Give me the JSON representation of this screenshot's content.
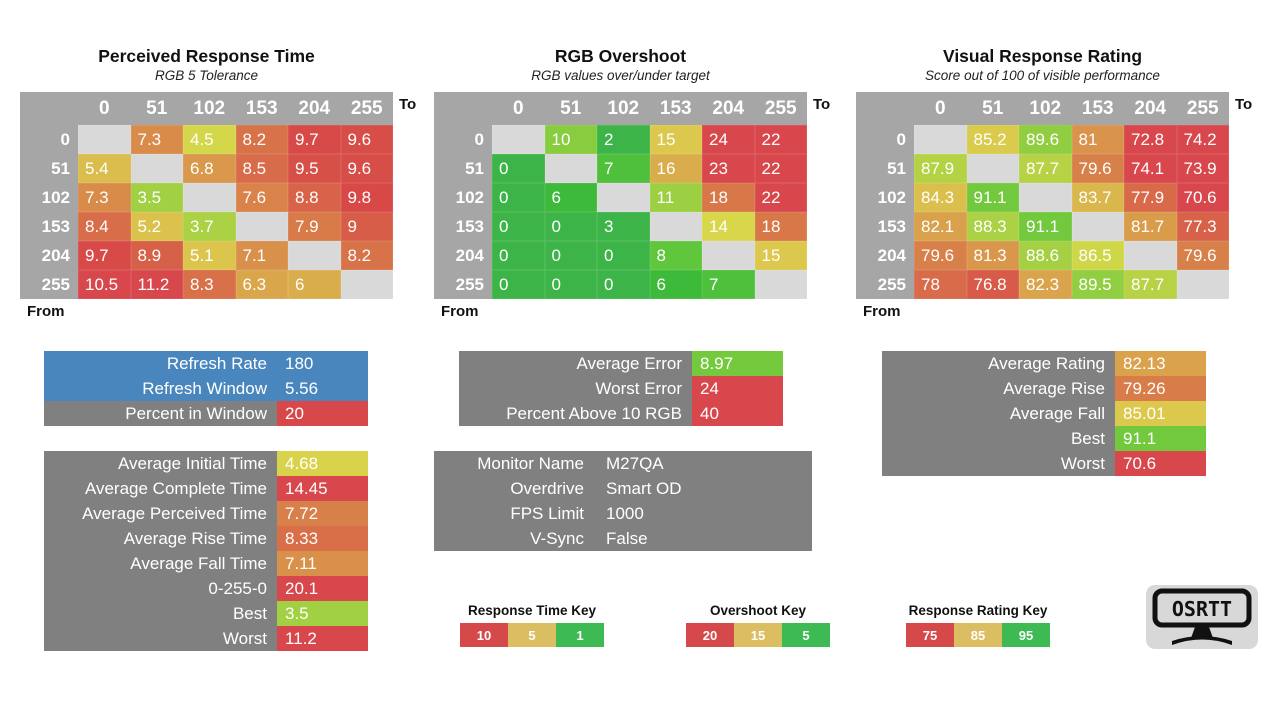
{
  "page": {
    "background": "#ffffff"
  },
  "colors": {
    "blue": "#4a86be",
    "gray": "#808080",
    "header_gray": "#a6a6a6",
    "diag_gray": "#d9d9d9",
    "red": "#d8484b",
    "key_red": "#d6494b",
    "key_tan": "#dbbe62",
    "key_green": "#3eba55",
    "logo_bg": "#d8d8d8"
  },
  "scales": {
    "time": {
      "stops": [
        [
          1,
          [
            126,
            50,
            47
          ]
        ],
        [
          5,
          [
            52,
            66,
            58
          ]
        ],
        [
          10,
          [
            358,
            64,
            56
          ]
        ]
      ]
    },
    "overshoot": {
      "stops": [
        [
          5,
          [
            126,
            50,
            47
          ]
        ],
        [
          15,
          [
            52,
            66,
            58
          ]
        ],
        [
          20,
          [
            358,
            64,
            56
          ]
        ]
      ]
    },
    "rating": {
      "stops": [
        [
          75,
          [
            358,
            64,
            56
          ]
        ],
        [
          85,
          [
            52,
            66,
            58
          ]
        ],
        [
          95,
          [
            126,
            50,
            47
          ]
        ]
      ]
    }
  },
  "chart_data": [
    {
      "type": "heatmap",
      "title": "Perceived Response Time",
      "subtitle": "RGB 5 Tolerance",
      "to_label": "To",
      "from_label": "From",
      "scale": "time",
      "x": [
        "0",
        "51",
        "102",
        "153",
        "204",
        "255"
      ],
      "y": [
        "0",
        "51",
        "102",
        "153",
        "204",
        "255"
      ],
      "values": [
        [
          null,
          7.3,
          4.5,
          8.2,
          9.7,
          9.6
        ],
        [
          5.4,
          null,
          6.8,
          8.5,
          9.5,
          9.6
        ],
        [
          7.3,
          3.5,
          null,
          7.6,
          8.8,
          9.8
        ],
        [
          8.4,
          5.2,
          3.7,
          null,
          7.9,
          9
        ],
        [
          9.7,
          8.9,
          5.1,
          7.1,
          null,
          8.2
        ],
        [
          10.5,
          11.2,
          8.3,
          6.3,
          6,
          null
        ]
      ]
    },
    {
      "type": "heatmap",
      "title": "RGB Overshoot",
      "subtitle": "RGB values over/under target",
      "to_label": "To",
      "from_label": "From",
      "scale": "overshoot",
      "x": [
        "0",
        "51",
        "102",
        "153",
        "204",
        "255"
      ],
      "y": [
        "0",
        "51",
        "102",
        "153",
        "204",
        "255"
      ],
      "values": [
        [
          null,
          10,
          2,
          15,
          24,
          22
        ],
        [
          0,
          null,
          7,
          16,
          23,
          22
        ],
        [
          0,
          6,
          null,
          11,
          18,
          22
        ],
        [
          0,
          0,
          3,
          null,
          14,
          18
        ],
        [
          0,
          0,
          0,
          8,
          null,
          15
        ],
        [
          0,
          0,
          0,
          6,
          7,
          null
        ]
      ]
    },
    {
      "type": "heatmap",
      "title": "Visual Response Rating",
      "subtitle": "Score out of 100 of visible performance",
      "to_label": "To",
      "from_label": "From",
      "scale": "rating",
      "x": [
        "0",
        "51",
        "102",
        "153",
        "204",
        "255"
      ],
      "y": [
        "0",
        "51",
        "102",
        "153",
        "204",
        "255"
      ],
      "values": [
        [
          null,
          85.2,
          89.6,
          81,
          72.8,
          74.2
        ],
        [
          87.9,
          null,
          87.7,
          79.6,
          74.1,
          73.9
        ],
        [
          84.3,
          91.1,
          null,
          83.7,
          77.9,
          70.6
        ],
        [
          82.1,
          88.3,
          91.1,
          null,
          81.7,
          77.3
        ],
        [
          79.6,
          81.3,
          88.6,
          86.5,
          null,
          79.6
        ],
        [
          78,
          76.8,
          82.3,
          89.5,
          87.7,
          null
        ]
      ]
    }
  ],
  "stat_boxes": [
    {
      "id": "refresh",
      "rows": [
        {
          "label": "Refresh Rate",
          "value": 180,
          "row_bg": "blue"
        },
        {
          "label": "Refresh Window",
          "value": 5.56,
          "row_bg": "blue"
        },
        {
          "label": "Percent in Window",
          "value": 20,
          "value_bg": "red"
        }
      ]
    },
    {
      "id": "time-stats",
      "scale": "time",
      "rows": [
        {
          "label": "Average Initial Time",
          "value": 4.68
        },
        {
          "label": "Average Complete Time",
          "value": 14.45
        },
        {
          "label": "Average Perceived Time",
          "value": 7.72
        },
        {
          "label": "Average Rise Time",
          "value": 8.33
        },
        {
          "label": "Average Fall Time",
          "value": 7.11
        },
        {
          "label": "0-255-0",
          "value": 20.1
        },
        {
          "label": "Best",
          "value": 3.5
        },
        {
          "label": "Worst",
          "value": 11.2
        }
      ]
    },
    {
      "id": "error-stats",
      "scale": "overshoot",
      "rows": [
        {
          "label": "Average Error",
          "value": 8.97
        },
        {
          "label": "Worst Error",
          "value": 24
        },
        {
          "label": "Percent Above 10 RGB",
          "value": 40
        }
      ]
    },
    {
      "id": "monitor-info",
      "plain": true,
      "rows": [
        {
          "label": "Monitor Name",
          "value": "M27QA"
        },
        {
          "label": "Overdrive",
          "value": "Smart OD"
        },
        {
          "label": "FPS Limit",
          "value": 1000
        },
        {
          "label": "V-Sync",
          "value": "False"
        }
      ]
    },
    {
      "id": "rating-stats",
      "scale": "rating",
      "rows": [
        {
          "label": "Average Rating",
          "value": 82.13
        },
        {
          "label": "Average Rise",
          "value": 79.26
        },
        {
          "label": "Average Fall",
          "value": 85.01
        },
        {
          "label": "Best",
          "value": 91.1
        },
        {
          "label": "Worst",
          "value": 70.6
        }
      ]
    }
  ],
  "keys": [
    {
      "title": "Response Time Key",
      "swatches": [
        {
          "label": 10,
          "color": "key_red"
        },
        {
          "label": 5,
          "color": "key_tan"
        },
        {
          "label": 1,
          "color": "key_green"
        }
      ]
    },
    {
      "title": "Overshoot Key",
      "swatches": [
        {
          "label": 20,
          "color": "key_red"
        },
        {
          "label": 15,
          "color": "key_tan"
        },
        {
          "label": 5,
          "color": "key_green"
        }
      ]
    },
    {
      "title": "Response Rating Key",
      "swatches": [
        {
          "label": 75,
          "color": "key_red"
        },
        {
          "label": 85,
          "color": "key_tan"
        },
        {
          "label": 95,
          "color": "key_green"
        }
      ]
    }
  ],
  "logo": {
    "text": "OSRTT"
  }
}
